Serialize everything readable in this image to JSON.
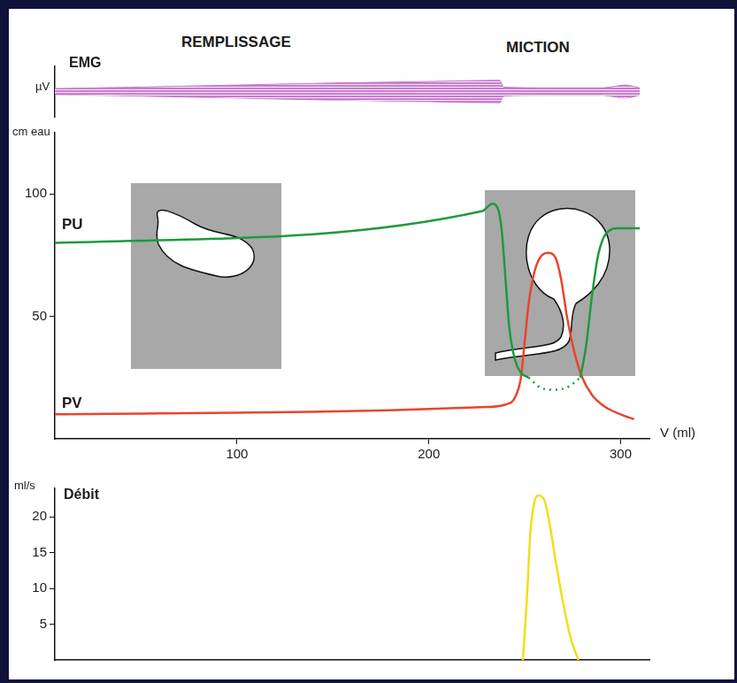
{
  "chart_data": [
    {
      "type": "area",
      "title": "EMG",
      "annotations": [
        "REMPLISSAGE",
        "MICTION"
      ],
      "y_label": "µV",
      "xlim": [
        5,
        315
      ],
      "xticks": [],
      "ylim": [
        -10,
        10
      ],
      "yticks": [],
      "tick_labels": false,
      "grid": false,
      "series": [
        {
          "color": "#c77ccf",
          "x": [
            5,
            50,
            100,
            150,
            200,
            237,
            239,
            260,
            290,
            298,
            302,
            306,
            310
          ],
          "values": [
            1.2,
            1.8,
            2.6,
            3.4,
            4,
            4.5,
            1.8,
            1.5,
            1.5,
            2.2,
            2.6,
            2.2,
            1.4
          ]
        },
        {
          "color": "#c77ccf",
          "x": [
            5,
            50,
            100,
            150,
            200,
            237,
            239,
            260,
            290,
            298,
            302,
            306,
            310
          ],
          "values": [
            -1.2,
            -1.8,
            -2.6,
            -3.4,
            -4,
            -4.5,
            -1.8,
            -1.5,
            -1.5,
            -2.2,
            -2.6,
            -2.2,
            -1.4
          ]
        }
      ]
    },
    {
      "type": "line",
      "y_label": "cm eau",
      "x_label": "V (ml)",
      "xlim": [
        5,
        315
      ],
      "xticks": [
        100,
        200,
        300
      ],
      "ylim": [
        0,
        125
      ],
      "yticks": [
        50,
        100
      ],
      "grid": false,
      "series": [
        {
          "name": "PU",
          "color": "#1e9a3e",
          "x": [
            5,
            228,
            231,
            233,
            236,
            238,
            240,
            242,
            245,
            248,
            252,
            265,
            279,
            282,
            285,
            288,
            291,
            294,
            298,
            304,
            310
          ],
          "values": [
            80,
            93,
            95,
            96,
            94,
            85,
            65,
            45,
            32,
            27,
            25,
            null,
            25,
            38,
            58,
            74,
            82,
            85,
            86,
            86,
            86
          ]
        },
        {
          "color": "#1e9a3e",
          "line_style": "dotted",
          "x": [
            252,
            258,
            265,
            272,
            279
          ],
          "values": [
            25,
            21,
            20,
            21,
            25
          ]
        },
        {
          "name": "PV",
          "color": "#e8452c",
          "x": [
            5,
            230,
            240,
            245,
            248,
            250,
            252,
            255,
            258,
            262,
            266,
            269,
            272,
            276,
            280,
            285,
            292,
            300,
            307
          ],
          "values": [
            10,
            13,
            14,
            17,
            25,
            40,
            55,
            68,
            74,
            76,
            74,
            65,
            50,
            35,
            25,
            18,
            13,
            10,
            8
          ]
        }
      ]
    },
    {
      "type": "line",
      "title": "Débit",
      "y_label": "ml/s",
      "xlim": [
        5,
        315
      ],
      "xticks": [],
      "ylim": [
        0,
        24
      ],
      "yticks": [
        5,
        10,
        15,
        20
      ],
      "tick_labels": "y",
      "grid": false,
      "series": [
        {
          "color": "#f2de1a",
          "x": [
            249,
            251,
            253,
            255,
            257,
            260,
            263,
            266,
            270,
            274,
            278
          ],
          "values": [
            0,
            8,
            18,
            22,
            23,
            22.5,
            19,
            14,
            8,
            3,
            0
          ]
        }
      ]
    }
  ]
}
